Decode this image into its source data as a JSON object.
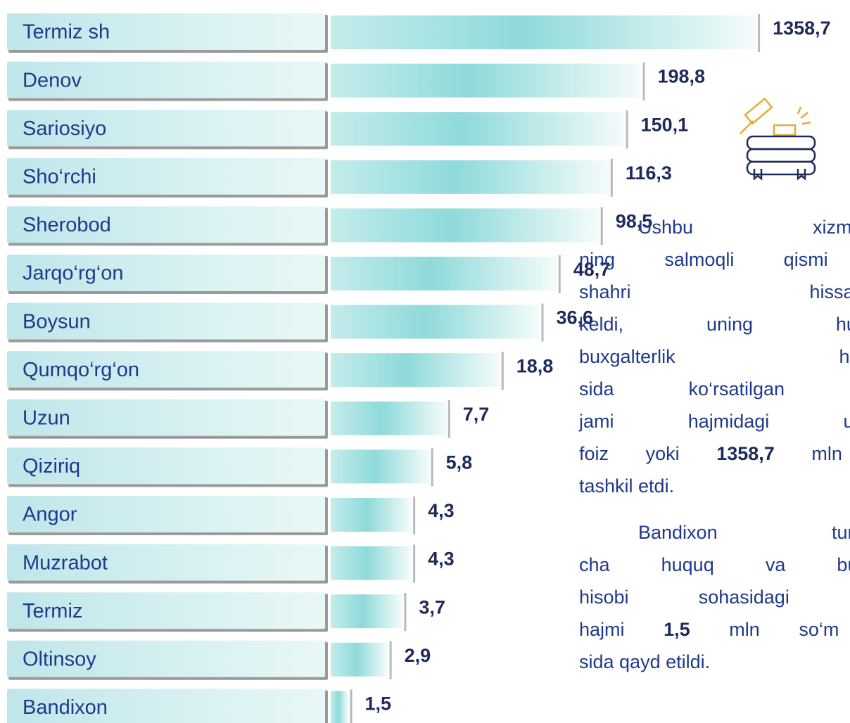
{
  "chart_data": {
    "type": "bar",
    "categories": [
      "Termiz sh",
      "Denov",
      "Sariosiyo",
      "Sho‘rchi",
      "Sherobod",
      "Jarqo‘rg‘on",
      "Boysun",
      "Qumqo‘rg‘on",
      "Uzun",
      "Qiziriq",
      "Angor",
      "Muzrabot",
      "Termiz",
      "Oltinsoy",
      "Bandixon"
    ],
    "values": [
      1358.7,
      198.8,
      150.1,
      116.3,
      98.5,
      48.7,
      36.6,
      18.8,
      7.7,
      5.8,
      4.3,
      4.3,
      3.7,
      2.9,
      1.5
    ],
    "value_labels": [
      "1358,7",
      "198,8",
      "150,1",
      "116,3",
      "98,5",
      "48,7",
      "36,6",
      "18,8",
      "7,7",
      "5,8",
      "4,3",
      "4,3",
      "3,7",
      "2,9",
      "1,5"
    ],
    "color": "#8fdada"
  },
  "text": {
    "paragraphs": [
      [
        [
          {
            "text": "Ushbu xizmatlar"
          }
        ],
        [
          {
            "text": "ning salmoqli qismi T"
          }
        ],
        [
          {
            "text": "shahri hissasiga"
          }
        ],
        [
          {
            "text": "keldi, uning huquq"
          }
        ],
        [
          {
            "text": "buxgalterlik hisobi"
          }
        ],
        [
          {
            "text": "sida ko‘rsatilgan xizr"
          }
        ],
        [
          {
            "text": "jami hajmidagi ulush"
          }
        ],
        [
          {
            "text": "foiz yoki "
          },
          {
            "text": "1358,7",
            "bold": true
          },
          {
            "text": " mln s"
          }
        ],
        [
          {
            "text": "tashkil etdi."
          }
        ]
      ],
      [
        [
          {
            "text": "Bandixon tumani"
          }
        ],
        [
          {
            "text": "cha huquq va buxga"
          }
        ],
        [
          {
            "text": "hisobi sohasidagi xizr"
          }
        ],
        [
          {
            "text": "hajmi "
          },
          {
            "text": "1,5",
            "bold": true
          },
          {
            "text": " mln so‘m d"
          }
        ],
        [
          {
            "text": "sida qayd etildi."
          }
        ]
      ]
    ]
  }
}
